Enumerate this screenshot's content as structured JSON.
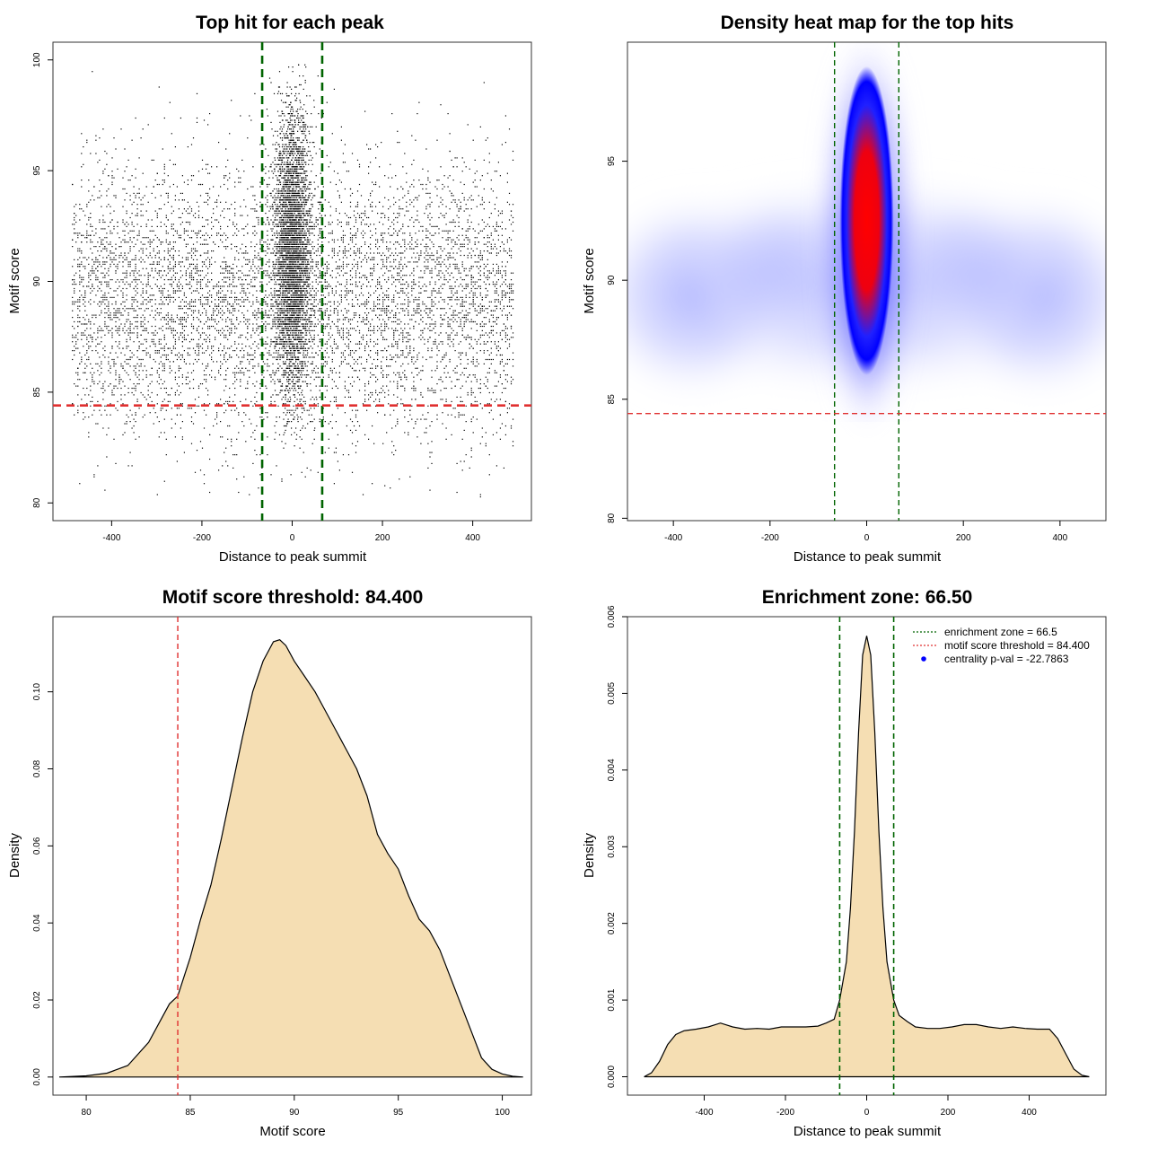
{
  "chart_data": [
    {
      "type": "scatter",
      "title": "Top hit for each peak",
      "xlabel": "Distance to peak summit",
      "ylabel": "Motif score",
      "xlim": [
        -530,
        530
      ],
      "ylim": [
        79.2,
        100.8
      ],
      "xticks": [
        "-400",
        "-200",
        "0",
        "200",
        "400"
      ],
      "xtick_values": [
        -400,
        -200,
        0,
        200,
        400
      ],
      "yticks": [
        "80",
        "85",
        "90",
        "95",
        "100"
      ],
      "ytick_values": [
        80,
        85,
        90,
        95,
        100
      ],
      "background_distribution": {
        "x_range": [
          -490,
          490
        ],
        "mean": 89.2,
        "sd": 3.0,
        "y_min": 80.2,
        "y_max": 99.5,
        "n_points": 7200
      },
      "central_distribution": {
        "x_mean": 0,
        "x_sd": 20,
        "mean": 91.4,
        "sd": 3.2,
        "y_min": 83.0,
        "y_max": 99.9,
        "n_points": 4200
      },
      "vlines": [
        -66.5,
        66.5
      ],
      "vline_color": "#006400",
      "hline": 84.4,
      "hline_color": "#e03030",
      "grid": false
    },
    {
      "type": "heatmap",
      "title": "Density heat map for the top hits",
      "xlabel": "Distance to peak summit",
      "ylabel": "Motif score",
      "xlim": [
        -495,
        495
      ],
      "ylim": [
        79.9,
        100
      ],
      "xticks": [
        "-400",
        "-200",
        "0",
        "200",
        "400"
      ],
      "xtick_values": [
        -400,
        -200,
        0,
        200,
        400
      ],
      "yticks": [
        "80",
        "85",
        "90",
        "95"
      ],
      "ytick_values": [
        80,
        85,
        90,
        95
      ],
      "peak": {
        "x": 0,
        "y": 92.5
      },
      "color_scale": [
        "#ffffff",
        "#0000ff",
        "#ff0000"
      ],
      "vlines": [
        -66.5,
        66.5
      ],
      "vline_color": "#006400",
      "hline": 84.4,
      "hline_color": "#e03030",
      "grid": false
    },
    {
      "type": "area",
      "title": "Motif score threshold: 84.400",
      "xlabel": "Motif score",
      "ylabel": "Density",
      "xlim": [
        78.4,
        101.4
      ],
      "ylim": [
        -0.0047,
        0.1195
      ],
      "xticks": [
        "80",
        "85",
        "90",
        "95",
        "100"
      ],
      "xtick_values": [
        80,
        85,
        90,
        95,
        100
      ],
      "yticks": [
        "0.00",
        "0.02",
        "0.04",
        "0.06",
        "0.08",
        "0.10"
      ],
      "ytick_values": [
        0,
        0.02,
        0.04,
        0.06,
        0.08,
        0.1
      ],
      "x": [
        78.7,
        80.0,
        81.0,
        82.0,
        83.0,
        83.5,
        84.0,
        84.4,
        85.0,
        85.5,
        86.0,
        86.5,
        87.0,
        87.5,
        88.0,
        88.5,
        89.0,
        89.3,
        89.6,
        90.0,
        90.5,
        91.0,
        91.5,
        92.0,
        92.5,
        93.0,
        93.5,
        94.0,
        94.5,
        95.0,
        95.5,
        96.0,
        96.5,
        97.0,
        97.5,
        98.0,
        98.5,
        99.0,
        99.5,
        100.0,
        100.5,
        101.0
      ],
      "y": [
        0.0,
        0.0003,
        0.001,
        0.003,
        0.009,
        0.014,
        0.019,
        0.021,
        0.031,
        0.041,
        0.05,
        0.062,
        0.075,
        0.088,
        0.1,
        0.108,
        0.113,
        0.1135,
        0.112,
        0.108,
        0.104,
        0.1,
        0.095,
        0.09,
        0.085,
        0.08,
        0.073,
        0.063,
        0.058,
        0.054,
        0.047,
        0.041,
        0.038,
        0.033,
        0.026,
        0.019,
        0.012,
        0.005,
        0.002,
        0.0008,
        0.0002,
        0.0
      ],
      "fill_color": "#f5deb3",
      "vline": 84.4,
      "vline_color": "#e03030",
      "grid": false
    },
    {
      "type": "area",
      "title": "Enrichment zone: 66.50",
      "xlabel": "Distance to peak summit",
      "ylabel": "Density",
      "xlim": [
        -589,
        589
      ],
      "ylim": [
        -0.00024,
        0.006
      ],
      "xticks": [
        "-400",
        "-200",
        "0",
        "200",
        "400"
      ],
      "xtick_values": [
        -400,
        -200,
        0,
        200,
        400
      ],
      "yticks": [
        "0.000",
        "0.001",
        "0.002",
        "0.003",
        "0.004",
        "0.005",
        "0.006"
      ],
      "ytick_values": [
        0,
        0.001,
        0.002,
        0.003,
        0.004,
        0.005,
        0.006
      ],
      "x": [
        -548,
        -530,
        -510,
        -490,
        -470,
        -450,
        -420,
        -390,
        -360,
        -330,
        -300,
        -270,
        -240,
        -210,
        -180,
        -150,
        -120,
        -100,
        -80,
        -66.5,
        -50,
        -40,
        -30,
        -20,
        -10,
        0,
        10,
        20,
        30,
        40,
        50,
        66.5,
        80,
        100,
        120,
        150,
        180,
        210,
        240,
        270,
        300,
        330,
        360,
        390,
        420,
        450,
        470,
        490,
        510,
        530,
        548
      ],
      "y": [
        0.0,
        5e-05,
        0.0002,
        0.00042,
        0.00055,
        0.0006,
        0.00062,
        0.00065,
        0.0007,
        0.00065,
        0.00062,
        0.00063,
        0.00062,
        0.00065,
        0.00065,
        0.00065,
        0.00066,
        0.0007,
        0.00075,
        0.001,
        0.0015,
        0.0022,
        0.0032,
        0.0045,
        0.0055,
        0.00575,
        0.0055,
        0.0045,
        0.0032,
        0.0022,
        0.0015,
        0.001,
        0.0008,
        0.00072,
        0.00065,
        0.00063,
        0.00063,
        0.00065,
        0.00068,
        0.00068,
        0.00065,
        0.00063,
        0.00065,
        0.00063,
        0.00062,
        0.00062,
        0.0005,
        0.0003,
        0.0001,
        2e-05,
        0.0
      ],
      "fill_color": "#f5deb3",
      "vlines": [
        -66.5,
        66.5
      ],
      "vline_color": "#006400",
      "legend_position": "top-right",
      "legend": [
        {
          "label": "enrichment zone = 66.5",
          "kind": "dotted-line",
          "color": "#006400"
        },
        {
          "label": "motif score threshold = 84.400",
          "kind": "dotted-line",
          "color": "#e03030"
        },
        {
          "label": "centrality p-val = -22.7863",
          "kind": "point",
          "color": "#0000ff"
        }
      ],
      "grid": false
    }
  ]
}
